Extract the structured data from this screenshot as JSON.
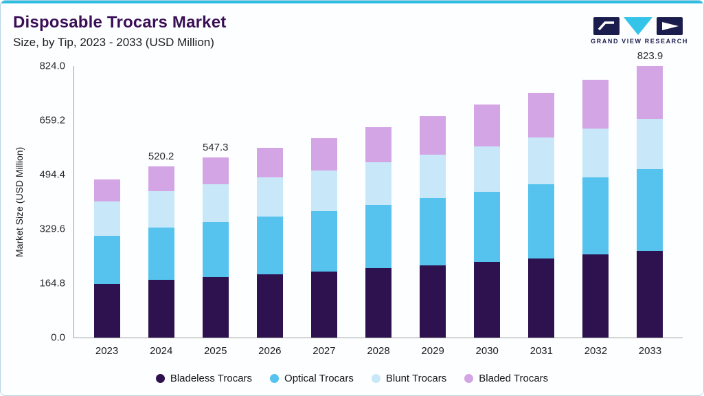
{
  "header": {
    "title": "Disposable Trocars Market",
    "subtitle": "Size, by Tip, 2023 - 2033 (USD Million)"
  },
  "logo": {
    "text": "GRAND VIEW RESEARCH",
    "navy_color": "#1b1c4e",
    "cyan_color": "#35c4e9"
  },
  "theme": {
    "accent_bar_color": "#2cbfe2",
    "frame_border_color": "#b8d4e4",
    "title_color": "#3a0e55"
  },
  "chart_data": {
    "type": "bar",
    "stacked": true,
    "title": "Disposable Trocars Market Size, by Tip, 2023 - 2033 (USD Million)",
    "ylabel": "Market Size (USD Million)",
    "xlabel": "",
    "ylim": [
      0,
      824.0
    ],
    "ytick_labels": [
      "824.0",
      "659.2",
      "494.4",
      "329.6",
      "164.8",
      "0.0"
    ],
    "grid": false,
    "legend_position": "bottom",
    "categories": [
      "2023",
      "2024",
      "2025",
      "2026",
      "2027",
      "2028",
      "2029",
      "2030",
      "2031",
      "2032",
      "2033"
    ],
    "series": [
      {
        "name": "Bladeless Trocars",
        "color": "#2e1250",
        "values": [
          163.2,
          175.8,
          183.9,
          192.4,
          201.2,
          210.5,
          220.1,
          230.2,
          240.7,
          251.8,
          263.6
        ]
      },
      {
        "name": "Optical Trocars",
        "color": "#55c3ee",
        "values": [
          146.4,
          158.4,
          166.4,
          174.8,
          183.6,
          193.0,
          202.6,
          212.9,
          223.6,
          235.0,
          247.2
        ]
      },
      {
        "name": "Blunt Trocars",
        "color": "#c8e8f9",
        "values": [
          103.2,
          110.3,
          114.4,
          118.7,
          123.0,
          127.6,
          132.2,
          137.0,
          141.9,
          147.0,
          152.4
        ]
      },
      {
        "name": "Bladed Trocars",
        "color": "#d4a5e5",
        "values": [
          67.2,
          75.7,
          82.6,
          90.1,
          98.2,
          106.9,
          116.1,
          126.0,
          136.7,
          148.2,
          160.7
        ]
      }
    ],
    "totals": [
      480.0,
      520.2,
      547.3,
      576.0,
      606.0,
      638.0,
      671.0,
      706.0,
      742.9,
      782.0,
      823.9
    ],
    "bar_labels": [
      "",
      "520.2",
      "547.3",
      "",
      "",
      "",
      "",
      "",
      "",
      "",
      "823.9"
    ]
  }
}
